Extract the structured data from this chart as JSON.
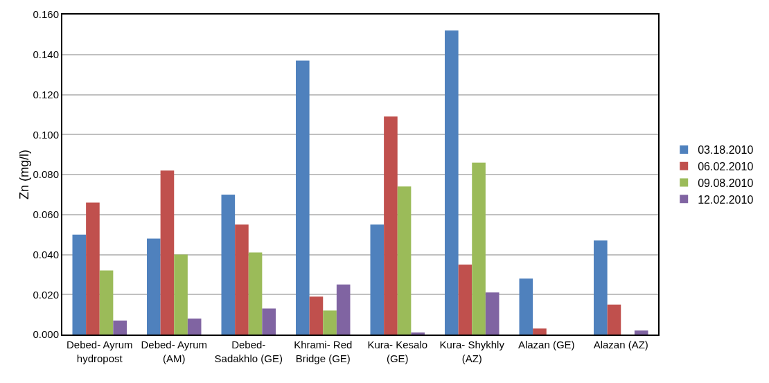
{
  "chart_data": {
    "type": "bar",
    "ylabel": "Zn (mg/l)",
    "categories": [
      "Debed- Ayrum hydropost",
      "Debed- Ayrum (AM)",
      "Debed- Sadakhlo (GE)",
      "Khrami- Red Bridge (GE)",
      "Kura- Kesalo (GE)",
      "Kura- Shykhly (AZ)",
      "Alazan (GE)",
      "Alazan (AZ)"
    ],
    "series": [
      {
        "name": "03.18.2010",
        "color": "#4f81bd",
        "values": [
          0.05,
          0.048,
          0.07,
          0.137,
          0.055,
          0.152,
          0.028,
          0.047
        ]
      },
      {
        "name": "06.02.2010",
        "color": "#c0504d",
        "values": [
          0.066,
          0.082,
          0.055,
          0.019,
          0.109,
          0.035,
          0.003,
          0.015
        ]
      },
      {
        "name": "09.08.2010",
        "color": "#9bbb59",
        "values": [
          0.032,
          0.04,
          0.041,
          0.012,
          0.074,
          0.086,
          0,
          0
        ]
      },
      {
        "name": "12.02.2010",
        "color": "#8064a2",
        "values": [
          0.007,
          0.008,
          0.013,
          0.025,
          0.001,
          0.021,
          0,
          0.002
        ]
      }
    ],
    "ylim": [
      0,
      0.16
    ],
    "yticks": [
      {
        "value": 0,
        "label": "0.000"
      },
      {
        "value": 0.02,
        "label": "0.020"
      },
      {
        "value": 0.04,
        "label": "0.040"
      },
      {
        "value": 0.06,
        "label": "0.060"
      },
      {
        "value": 0.08,
        "label": "0.080"
      },
      {
        "value": 0.1,
        "label": "0.100"
      },
      {
        "value": 0.12,
        "label": "0.120"
      },
      {
        "value": 0.14,
        "label": "0.140"
      },
      {
        "value": 0.16,
        "label": "0.160"
      }
    ],
    "grid": "y",
    "legend": "right"
  }
}
